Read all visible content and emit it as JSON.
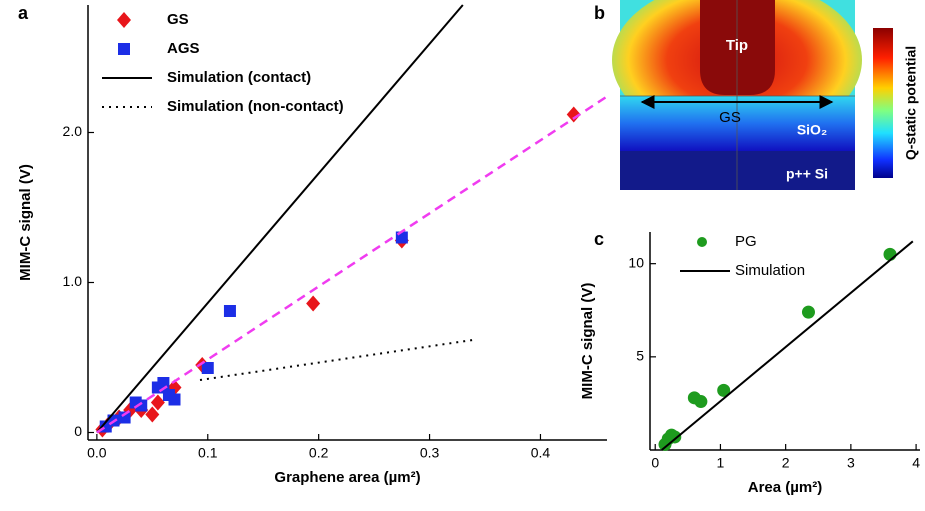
{
  "chart_data": [
    {
      "type": "scatter",
      "label": "a",
      "xlabel": "Graphene area (µm²)",
      "ylabel": "MIM-C signal (V)",
      "xlim": [
        -0.008,
        0.46
      ],
      "ylim": [
        -0.05,
        2.85
      ],
      "xticks": [
        {
          "value": 0,
          "label": "0.0"
        },
        0.1,
        0.2,
        0.3,
        0.4
      ],
      "yticks": [
        0,
        {
          "value": 1,
          "label": "1.0"
        },
        {
          "value": 2,
          "label": "2.0"
        }
      ],
      "legend": "upper left",
      "series": [
        {
          "name": "GS",
          "type": "scatter",
          "marker": "diamond",
          "color": "#e8161b",
          "x": [
            0.005,
            0.01,
            0.02,
            0.03,
            0.04,
            0.05,
            0.055,
            0.07,
            0.095,
            0.195,
            0.275,
            0.43
          ],
          "values": [
            0.02,
            0.05,
            0.1,
            0.15,
            0.15,
            0.12,
            0.2,
            0.3,
            0.45,
            0.86,
            1.28,
            2.12
          ]
        },
        {
          "name": "AGS",
          "type": "scatter",
          "marker": "square",
          "color": "#1c2ee6",
          "x": [
            0.008,
            0.015,
            0.025,
            0.035,
            0.04,
            0.055,
            0.06,
            0.065,
            0.07,
            0.1,
            0.12,
            0.275
          ],
          "values": [
            0.04,
            0.08,
            0.1,
            0.2,
            0.18,
            0.3,
            0.33,
            0.25,
            0.22,
            0.43,
            0.81,
            1.3
          ]
        },
        {
          "name": "Simulation (contact)",
          "type": "line",
          "dash": "solid",
          "color": "#000000",
          "x": [
            0,
            0.33
          ],
          "values": [
            0,
            2.85
          ]
        },
        {
          "name": "Simulation (non-contact)",
          "type": "line",
          "dash": "dotted",
          "color": "#000000",
          "x": [
            0.093,
            0.342
          ],
          "values": [
            0.35,
            0.62
          ]
        },
        {
          "type": "line",
          "dash": "dashed",
          "color": "#f03cf0",
          "x": [
            0,
            0.46
          ],
          "values": [
            0,
            2.24
          ]
        }
      ]
    },
    {
      "type": "scatter",
      "label": "c",
      "xlabel": "Area (µm²)",
      "ylabel": "MIM-C signal (V)",
      "xlim": [
        -0.08,
        4.06
      ],
      "ylim": [
        0,
        11.7
      ],
      "xticks": [
        0,
        1,
        2,
        3,
        4
      ],
      "yticks": [
        5,
        10
      ],
      "legend": "upper left",
      "series": [
        {
          "name": "PG",
          "type": "scatter",
          "marker": "circle",
          "color": "#1e9b1e",
          "x": [
            0.15,
            0.2,
            0.25,
            0.3,
            0.6,
            0.7,
            1.05,
            2.35,
            3.6
          ],
          "values": [
            0.3,
            0.6,
            0.8,
            0.7,
            2.8,
            2.6,
            3.2,
            7.4,
            10.5
          ]
        },
        {
          "name": "Simulation",
          "type": "line",
          "dash": "solid",
          "color": "#000000",
          "x": [
            0.1,
            3.95
          ],
          "values": [
            0,
            11.2
          ]
        }
      ]
    }
  ],
  "panel_b": {
    "label": "b",
    "tip": "Tip",
    "gs": "GS",
    "oxide": "SiO₂",
    "substrate": "p++ Si",
    "colorbar": "Q-static potential"
  }
}
